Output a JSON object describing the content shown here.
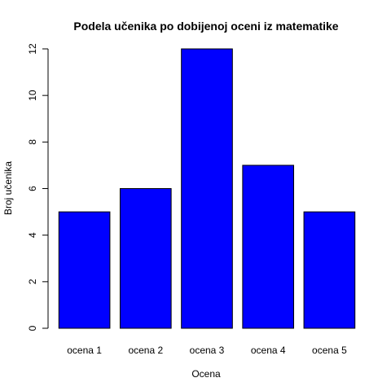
{
  "chart_data": {
    "type": "bar",
    "title": "Podela učenika po dobijenoj oceni iz matematike",
    "xlabel": "Ocena",
    "ylabel": "Broj učenika",
    "categories": [
      "ocena 1",
      "ocena 2",
      "ocena 3",
      "ocena 4",
      "ocena 5"
    ],
    "values": [
      5,
      6,
      12,
      7,
      5
    ],
    "ylim": [
      0,
      12
    ],
    "yticks": [
      0,
      2,
      4,
      6,
      8,
      10,
      12
    ],
    "bar_color": "#0000ff",
    "grid": false
  }
}
